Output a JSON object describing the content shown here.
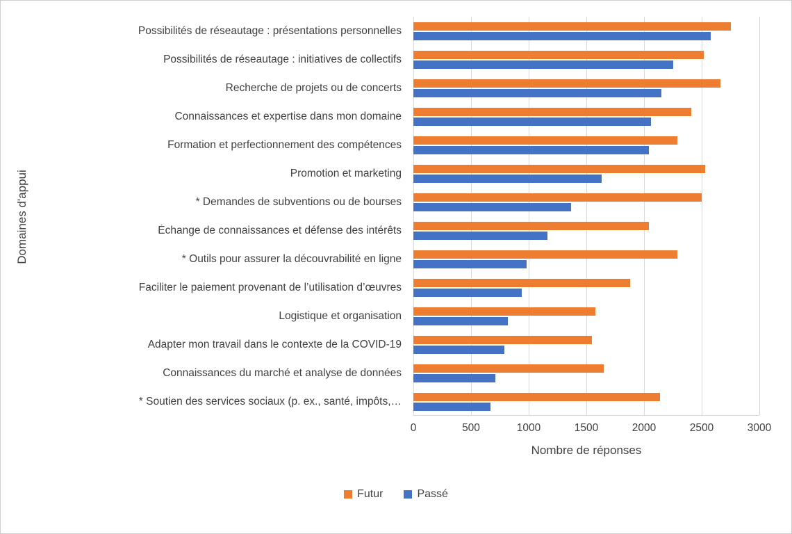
{
  "chart_data": {
    "type": "bar",
    "orientation": "horizontal",
    "title": "",
    "xlabel": "Nombre de réponses",
    "ylabel": "Domaines d'appui",
    "xlim": [
      0,
      3000
    ],
    "x_ticks": [
      0,
      500,
      1000,
      1500,
      2000,
      2500,
      3000
    ],
    "grid": true,
    "legend_position": "bottom",
    "categories": [
      "Possibilités de réseautage : présentations personnelles",
      "Possibilités de réseautage : initiatives de collectifs",
      "Recherche de projets ou de concerts",
      "Connaissances et expertise dans mon domaine",
      "Formation et perfectionnement des compétences",
      "Promotion et marketing",
      "* Demandes de subventions ou de bourses",
      "Échange de connaissances et défense des intérêts",
      "* Outils pour assurer la découvrabilité en ligne",
      "Faciliter le paiement provenant de l’utilisation d’œuvres",
      "Logistique et organisation",
      "Adapter mon travail dans le contexte de la COVID-19",
      "Connaissances du marché et analyse de données",
      "* Soutien des services sociaux  (p. ex., santé, impôts,…"
    ],
    "series": [
      {
        "name": "Futur",
        "color": "#ED7D31",
        "values": [
          2750,
          2520,
          2660,
          2410,
          2290,
          2530,
          2500,
          2040,
          2290,
          1880,
          1580,
          1550,
          1650,
          2140
        ]
      },
      {
        "name": "Passé",
        "color": "#4472C4",
        "values": [
          2580,
          2250,
          2150,
          2060,
          2040,
          1630,
          1370,
          1160,
          980,
          940,
          820,
          790,
          710,
          670
        ]
      }
    ]
  }
}
